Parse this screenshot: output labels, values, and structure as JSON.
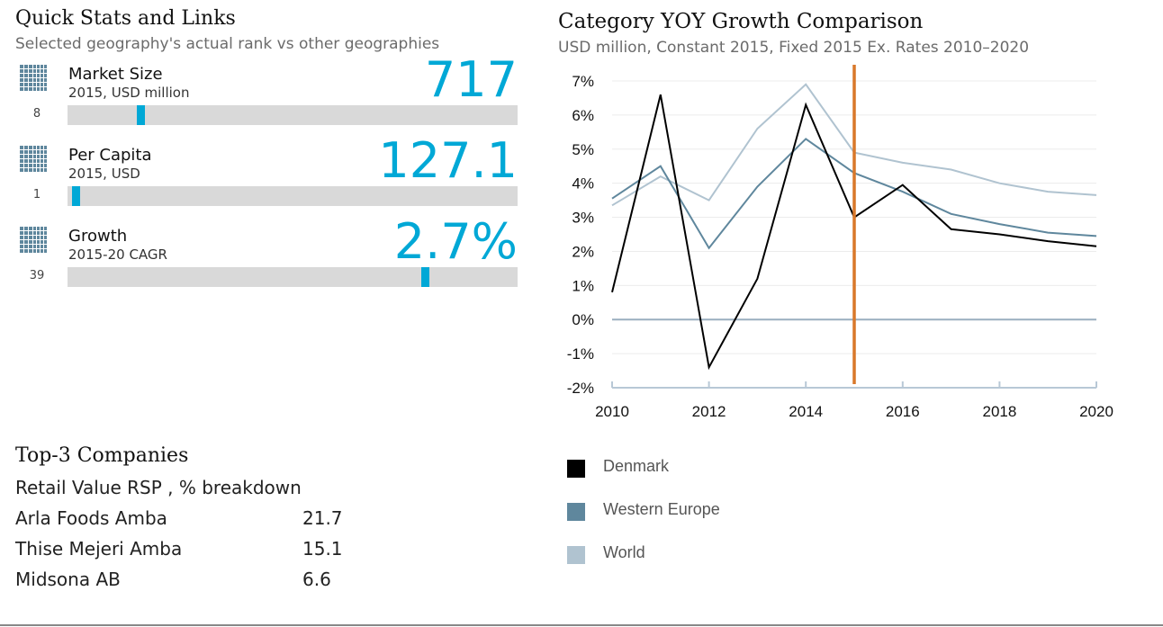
{
  "quick_stats": {
    "title": "Quick Stats and Links",
    "subtitle": "Selected geography's actual rank vs other geographies",
    "icon": "grid-icon",
    "items": [
      {
        "name": "Market Size",
        "unit": "2015, USD million",
        "rank": "8",
        "value": "717",
        "marker_fraction": 0.154
      },
      {
        "name": "Per Capita",
        "unit": "2015, USD",
        "rank": "1",
        "value": "127.1",
        "marker_fraction": 0.01
      },
      {
        "name": "Growth",
        "unit": "2015-20 CAGR",
        "rank": "39",
        "value": "2.7%",
        "marker_fraction": 0.786
      }
    ]
  },
  "companies": {
    "title": "Top-3 Companies",
    "subtitle": "Retail Value RSP , % breakdown",
    "rows": [
      {
        "name": "Arla Foods Amba",
        "value": "21.7"
      },
      {
        "name": "Thise Mejeri Amba",
        "value": "15.1"
      },
      {
        "name": "Midsona AB",
        "value": "6.6"
      }
    ]
  },
  "chart_data": {
    "type": "line",
    "title": "Category YOY Growth Comparison",
    "subtitle": "USD million, Constant 2015, Fixed 2015 Ex. Rates  2010–2020",
    "x": [
      2010,
      2011,
      2012,
      2013,
      2014,
      2015,
      2016,
      2017,
      2018,
      2019,
      2020
    ],
    "xlim": [
      2010,
      2020
    ],
    "ylim": [
      -2,
      7
    ],
    "x_ticks": [
      "2010",
      "2012",
      "2014",
      "2016",
      "2018",
      "2020"
    ],
    "y_ticks": [
      "7%",
      "6%",
      "5%",
      "4%",
      "3%",
      "2%",
      "1%",
      "0%",
      "-1%",
      "-2%"
    ],
    "vertical_marker": 2015,
    "grid": true,
    "legend_position": "bottom",
    "series": [
      {
        "name": "Denmark",
        "color": "#000000",
        "values": [
          0.8,
          6.6,
          -1.4,
          1.2,
          6.3,
          3.0,
          3.95,
          2.65,
          2.5,
          2.3,
          2.15
        ]
      },
      {
        "name": "Western Europe",
        "color": "#5f879d",
        "values": [
          3.55,
          4.5,
          2.1,
          3.9,
          5.3,
          4.3,
          3.75,
          3.1,
          2.8,
          2.55,
          2.45
        ]
      },
      {
        "name": "World",
        "color": "#b0c3d0",
        "values": [
          3.35,
          4.2,
          3.5,
          5.6,
          6.9,
          4.9,
          4.6,
          4.4,
          4.0,
          3.75,
          3.65
        ]
      }
    ],
    "colors": {
      "marker": "#d9782a",
      "axis": "#b8c8d6",
      "zero": "#9aaebf"
    }
  }
}
